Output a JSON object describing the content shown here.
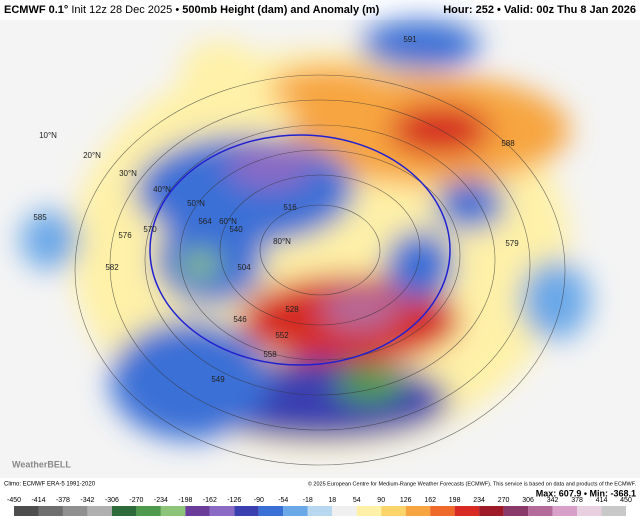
{
  "header": {
    "model": "ECMWF 0.1°",
    "init": "Init 12z 28 Dec 2025 •",
    "product": "500mb Height (dam) and Anomaly (m)",
    "hour": "Hour: 252 •",
    "valid": "Valid: 00z Thu 8 Jan 2026"
  },
  "map": {
    "labels": [
      "10°N",
      "20°N",
      "30°N",
      "40°N",
      "50°N",
      "60°N",
      "80°N",
      "585",
      "582",
      "576",
      "570",
      "564",
      "558",
      "552",
      "546",
      "540",
      "528",
      "516",
      "504",
      "588",
      "579",
      "591",
      "549"
    ]
  },
  "footer": {
    "climo": "Climo: ECMWF ERA-5 1991-2020",
    "copyright": "© 2025 European Centre for Medium-Range Weather Forecasts (ECMWF). This service is based on data and products of the ECMWF.",
    "extremes": "Max: 607.9 • Min: -368.1",
    "logo": "WeatherBELL"
  },
  "colorbar": {
    "ticks": [
      -450,
      -414,
      -378,
      -342,
      -306,
      -270,
      -234,
      -198,
      -162,
      -126,
      -90,
      -54,
      -18,
      18,
      54,
      90,
      126,
      162,
      198,
      234,
      270,
      306,
      342,
      378,
      414,
      450
    ]
  }
}
